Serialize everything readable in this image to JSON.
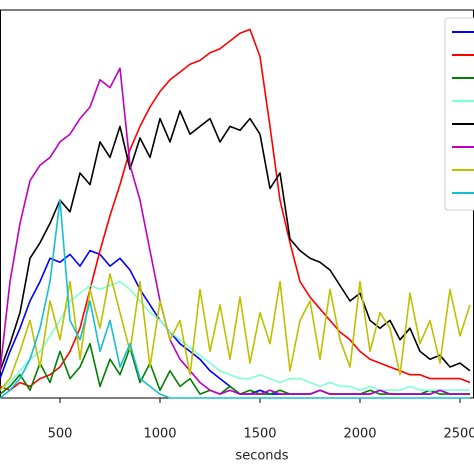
{
  "chart_data": {
    "type": "line",
    "xlabel": "seconds",
    "x": [
      200,
      250,
      300,
      350,
      400,
      450,
      500,
      550,
      600,
      650,
      700,
      750,
      800,
      850,
      900,
      950,
      1000,
      1050,
      1100,
      1150,
      1200,
      1250,
      1300,
      1350,
      1400,
      1450,
      1500,
      1550,
      1600,
      1650,
      1700,
      1750,
      1800,
      1850,
      1900,
      1950,
      2000,
      2050,
      2100,
      2150,
      2200,
      2250,
      2300,
      2350,
      2400,
      2450,
      2500,
      2550
    ],
    "xlim": [
      200,
      2570
    ],
    "xticks": [
      500,
      1000,
      1500,
      2000,
      2500
    ],
    "ylim": [
      0,
      100
    ],
    "legend": "upper right",
    "series": [
      {
        "color": "#0000ff",
        "values": [
          5,
          12,
          18,
          25,
          30,
          36,
          35,
          37,
          34,
          38,
          37,
          34,
          36,
          33,
          28,
          24,
          20,
          17,
          14,
          12,
          10,
          7,
          5,
          3,
          1,
          1,
          2,
          1,
          1,
          1,
          1,
          1,
          2,
          1,
          1,
          1,
          1,
          1,
          2,
          1,
          1,
          1,
          1,
          1,
          2,
          1,
          1,
          1
        ]
      },
      {
        "color": "#ff0000",
        "values": [
          3,
          2,
          4,
          3,
          5,
          6,
          8,
          12,
          18,
          28,
          38,
          47,
          55,
          64,
          70,
          75,
          79,
          82,
          84,
          86,
          87,
          89,
          90,
          92,
          94,
          95,
          88,
          70,
          51,
          40,
          30,
          26,
          23,
          20,
          17,
          15,
          12,
          10,
          9,
          8,
          7,
          6,
          6,
          5,
          5,
          5,
          5,
          4
        ]
      },
      {
        "color": "#008000",
        "values": [
          1,
          3,
          6,
          2,
          9,
          4,
          12,
          5,
          8,
          14,
          3,
          10,
          6,
          13,
          4,
          9,
          2,
          7,
          3,
          5,
          1,
          2,
          1,
          3,
          1,
          2,
          1,
          1,
          2,
          1,
          1,
          1,
          2,
          1,
          1,
          1,
          1,
          2,
          1,
          1,
          1,
          1,
          1,
          2,
          1,
          1,
          1,
          1
        ]
      },
      {
        "color": "#7fffd4",
        "values": [
          2,
          4,
          7,
          10,
          12,
          16,
          20,
          25,
          27,
          29,
          28,
          29,
          30,
          28,
          25,
          22,
          20,
          17,
          15,
          13,
          11,
          9,
          7,
          6,
          5,
          5,
          6,
          5,
          4,
          5,
          5,
          4,
          3,
          4,
          3,
          3,
          2,
          3,
          2,
          2,
          2,
          3,
          2,
          2,
          2,
          2,
          2,
          2
        ]
      },
      {
        "color": "#000000",
        "values": [
          7,
          14,
          22,
          36,
          40,
          45,
          51,
          48,
          58,
          55,
          66,
          62,
          70,
          59,
          67,
          62,
          72,
          66,
          74,
          68,
          70,
          72,
          66,
          70,
          69,
          72,
          68,
          54,
          58,
          41,
          38,
          36,
          35,
          33,
          29,
          25,
          27,
          20,
          18,
          20,
          15,
          18,
          12,
          10,
          11,
          8,
          9,
          7
        ]
      },
      {
        "color": "#bf00bf",
        "values": [
          7,
          30,
          45,
          56,
          60,
          62,
          66,
          68,
          72,
          75,
          82,
          80,
          85,
          60,
          51,
          38,
          25,
          15,
          10,
          7,
          4,
          2,
          1,
          2,
          1,
          1,
          1,
          2,
          1,
          1,
          1,
          1,
          2,
          1,
          1,
          1,
          1,
          1,
          2,
          1,
          1,
          1,
          1,
          1,
          2,
          1,
          1,
          1
        ]
      },
      {
        "color": "#bfbf00",
        "values": [
          2,
          5,
          12,
          20,
          8,
          25,
          15,
          30,
          10,
          28,
          18,
          32,
          22,
          12,
          30,
          8,
          25,
          15,
          20,
          6,
          28,
          12,
          24,
          10,
          26,
          9,
          22,
          14,
          30,
          7,
          20,
          25,
          10,
          28,
          15,
          8,
          30,
          12,
          22,
          18,
          6,
          27,
          14,
          20,
          9,
          28,
          16,
          24
        ]
      },
      {
        "color": "#17becf",
        "values": [
          0,
          2,
          5,
          10,
          18,
          30,
          51,
          20,
          15,
          25,
          12,
          20,
          8,
          14,
          5,
          3,
          1,
          0,
          0,
          0,
          0,
          0,
          0,
          0,
          0,
          0,
          0,
          0,
          0,
          0,
          0,
          0,
          0,
          0,
          0,
          0,
          0,
          0,
          0,
          0,
          0,
          0,
          0,
          0,
          0,
          0,
          0,
          0
        ]
      }
    ]
  }
}
